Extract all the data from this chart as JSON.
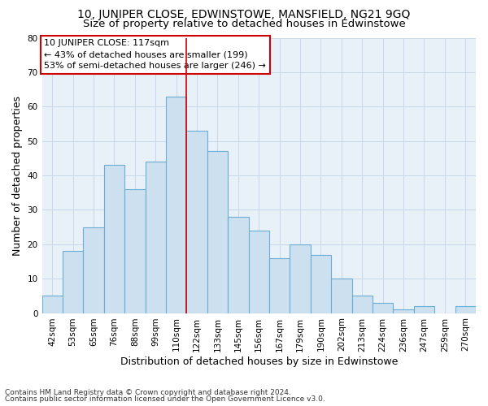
{
  "title_line1": "10, JUNIPER CLOSE, EDWINSTOWE, MANSFIELD, NG21 9GQ",
  "title_line2": "Size of property relative to detached houses in Edwinstowe",
  "xlabel": "Distribution of detached houses by size in Edwinstowe",
  "ylabel": "Number of detached properties",
  "footnote_line1": "Contains HM Land Registry data © Crown copyright and database right 2024.",
  "footnote_line2": "Contains public sector information licensed under the Open Government Licence v3.0.",
  "bar_labels": [
    "42sqm",
    "53sqm",
    "65sqm",
    "76sqm",
    "88sqm",
    "99sqm",
    "110sqm",
    "122sqm",
    "133sqm",
    "145sqm",
    "156sqm",
    "167sqm",
    "179sqm",
    "190sqm",
    "202sqm",
    "213sqm",
    "224sqm",
    "236sqm",
    "247sqm",
    "259sqm",
    "270sqm"
  ],
  "bar_heights": [
    5,
    18,
    25,
    43,
    36,
    44,
    63,
    53,
    47,
    28,
    24,
    16,
    20,
    17,
    10,
    5,
    3,
    1,
    2,
    0,
    2
  ],
  "bar_color": "#cce0f0",
  "bar_edgecolor": "#6aaed6",
  "annotation_line1": "10 JUNIPER CLOSE: 117sqm",
  "annotation_line2": "← 43% of detached houses are smaller (199)",
  "annotation_line3": "53% of semi-detached houses are larger (246) →",
  "annotation_box_edgecolor": "#cc0000",
  "vline_x_index": 6.5,
  "vline_color": "#cc0000",
  "ylim": [
    0,
    80
  ],
  "yticks": [
    0,
    10,
    20,
    30,
    40,
    50,
    60,
    70,
    80
  ],
  "grid_color": "#c8d8e8",
  "bg_color": "#e8f0f8",
  "title1_fontsize": 10,
  "title2_fontsize": 9.5,
  "xlabel_fontsize": 9,
  "ylabel_fontsize": 9,
  "tick_fontsize": 7.5,
  "annot_fontsize": 8,
  "footnote_fontsize": 6.5
}
